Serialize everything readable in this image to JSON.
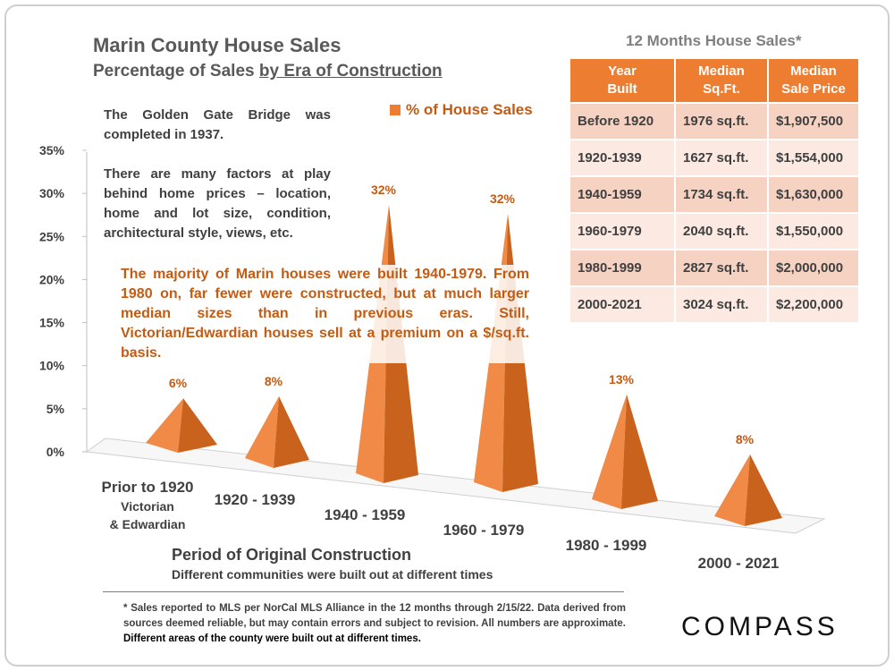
{
  "title": "Marin County House Sales",
  "subtitle_prefix": "Percentage of Sales ",
  "subtitle_underlined": "by Era of Construction",
  "note_bridge": "The Golden Gate Bridge was completed in 1937.",
  "note_factors": "There are many factors at play behind home prices – location, home and lot size, condition, architectural style, views, etc.",
  "callout": "The majority of Marin houses were built 1940-1979. From 1980 on, far fewer were constructed, but at much larger median sizes than in previous eras. Still, Victorian/Edwardian houses sell at a premium on a $/sq.ft. basis.",
  "xaxis_title": "Period of Original Construction",
  "xaxis_subtitle": "Different communities were built out at different times",
  "footnote_regular": "* Sales reported to MLS per NorCal MLS Alliance in the 12 months through 2/15/22. Data derived from sources deemed reliable, but may contain errors and subject to revision. All numbers are approximate. ",
  "footnote_bold": "Different areas of the county were built out at different times.",
  "logo": "COMPASS",
  "colors": {
    "accent": "#ed7d31",
    "label": "#c55a11"
  },
  "table": {
    "title": "12 Months House Sales*",
    "headers": [
      [
        "Year",
        "Built"
      ],
      [
        "Median",
        "Sq.Ft."
      ],
      [
        "Median",
        "Sale Price"
      ]
    ],
    "rows": [
      [
        "Before 1920",
        "1976 sq.ft.",
        "$1,907,500"
      ],
      [
        "1920-1939",
        "1627 sq.ft.",
        "$1,554,000"
      ],
      [
        "1940-1959",
        "1734 sq.ft.",
        "$1,630,000"
      ],
      [
        "1960-1979",
        "2040 sq.ft.",
        "$1,550,000"
      ],
      [
        "1980-1999",
        "2827 sq.ft.",
        "$2,000,000"
      ],
      [
        "2000-2021",
        "3024 sq.ft.",
        "$2,200,000"
      ]
    ]
  },
  "chart_data": {
    "type": "bar",
    "style": "3d-pyramid",
    "title": "Marin County House Sales",
    "subtitle": "Percentage of Sales by Era of Construction",
    "legend": "% of House Sales",
    "legend_position": "top",
    "categories": [
      "Prior to 1920",
      "1920 - 1939",
      "1940 - 1959",
      "1960 - 1979",
      "1980 - 1999",
      "2000 - 2021"
    ],
    "category_sublabels": [
      "Victorian",
      "& Edwardian"
    ],
    "values": [
      6,
      8,
      32,
      32,
      13,
      8
    ],
    "data_labels": [
      "6%",
      "8%",
      "32%",
      "32%",
      "13%",
      "8%"
    ],
    "yticks": [
      "0%",
      "5%",
      "10%",
      "15%",
      "20%",
      "25%",
      "30%",
      "35%"
    ],
    "ylim": [
      0,
      35
    ],
    "xlabel": "Period of Original Construction",
    "ylabel": ""
  }
}
